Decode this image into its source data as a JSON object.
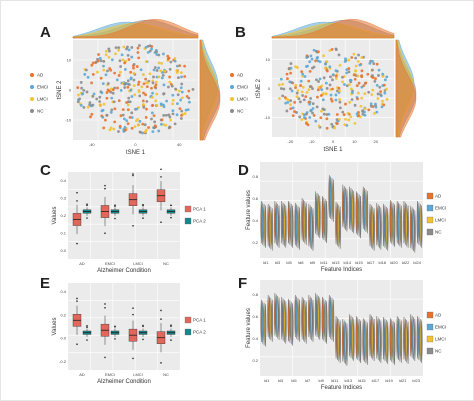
{
  "panels": {
    "A": "A",
    "B": "B",
    "C": "C",
    "D": "D",
    "E": "E",
    "F": "F"
  },
  "colors": {
    "AD": "#e8722c",
    "EMCI": "#5ba8d6",
    "LMCI": "#f2c230",
    "NC": "#8c8c8c",
    "PCA1": "#e0675a",
    "PCA2": "#17888c"
  },
  "chart_data": [
    {
      "panel": "A",
      "type": "scatter",
      "xlabel": "tSNE 1",
      "ylabel": "tSNE 2",
      "xticks": [
        "-40",
        "0",
        "40"
      ],
      "yticks": [
        "-10",
        "0",
        "10"
      ],
      "xlim": [
        -55,
        60
      ],
      "ylim": [
        -22,
        22
      ],
      "legend": [
        "AD",
        "EMCI",
        "LMCI",
        "NC"
      ],
      "legend_position": "left",
      "marginals": "density-top-right"
    },
    {
      "panel": "B",
      "type": "scatter",
      "xlabel": "tSNE 1",
      "ylabel": "tSNE 2",
      "xticks": [
        "-20",
        "-10",
        "0",
        "10",
        "20"
      ],
      "yticks": [
        "-10",
        "0",
        "10"
      ],
      "xlim": [
        -25,
        25
      ],
      "ylim": [
        -20,
        20
      ],
      "legend": [
        "AD",
        "EMCI",
        "LMCI",
        "NC"
      ],
      "legend_position": "left",
      "marginals": "density-top-right"
    },
    {
      "panel": "C",
      "type": "box",
      "xlabel": "Alzheimer Condition",
      "ylabel": "Values",
      "categories": [
        "AD",
        "EMCI",
        "LMCI",
        "NC"
      ],
      "yticks": [
        "0.4",
        "0.3",
        "0.2",
        "0.1",
        "0.0"
      ],
      "series": [
        {
          "name": "PCA 1",
          "median": [
            0.08,
            0.1,
            0.13,
            0.14
          ]
        },
        {
          "name": "PCA 2",
          "median": [
            0.1,
            0.1,
            0.1,
            0.1
          ]
        }
      ]
    },
    {
      "panel": "D",
      "type": "violin",
      "xlabel": "Feature Indices",
      "ylabel": "Feature values",
      "xticks": [
        "ld1",
        "ld3",
        "ld5",
        "ld8",
        "ld9",
        "ld11",
        "ld13",
        "ld14",
        "ld15",
        "ld17",
        "ld18",
        "ld20",
        "ld22",
        "ld24"
      ],
      "legend": [
        "AD",
        "EMCI",
        "LMCI",
        "NC"
      ],
      "legend_position": "right",
      "group_levels": [
        0.35,
        0.32,
        0.35,
        0.35,
        0.35,
        0.33,
        0.38,
        0.32,
        0.45,
        0.4,
        0.62,
        0.34,
        0.52,
        0.5,
        0.45,
        0.5,
        0.32,
        0.33,
        0.32,
        0.36,
        0.35,
        0.35,
        0.3,
        0.35
      ]
    },
    {
      "panel": "E",
      "type": "box",
      "xlabel": "Alzheimer Condition",
      "ylabel": "Values",
      "categories": [
        "AD",
        "EMCI",
        "LMCI",
        "NC"
      ],
      "yticks": [
        "0.4",
        "0.2",
        "0.0",
        "-0.2"
      ],
      "series": [
        {
          "name": "PCA 1",
          "median": [
            0.05,
            0.01,
            -0.01,
            -0.02
          ]
        },
        {
          "name": "PCA 2",
          "median": [
            0.0,
            0.0,
            0.0,
            0.0
          ]
        }
      ]
    },
    {
      "panel": "F",
      "type": "violin",
      "xlabel": "Feature Indices",
      "ylabel": "Feature values",
      "xticks": [
        "ld1",
        "ld3",
        "ld5",
        "ld7",
        "ld9",
        "ld11",
        "ld13",
        "ld15",
        "ld17",
        "ld19",
        "ld21",
        "ld23"
      ],
      "legend": [
        "AD",
        "EMCI",
        "LMCI",
        "NC"
      ],
      "legend_position": "right",
      "group_levels": [
        0.55,
        0.6,
        0.62,
        0.58,
        0.56,
        0.6,
        0.58,
        0.6,
        0.62,
        0.58,
        0.6,
        0.38,
        0.35,
        0.4,
        0.38,
        0.36,
        0.4,
        0.38,
        0.37,
        0.36,
        0.38,
        0.37,
        0.4,
        0.38
      ]
    }
  ]
}
